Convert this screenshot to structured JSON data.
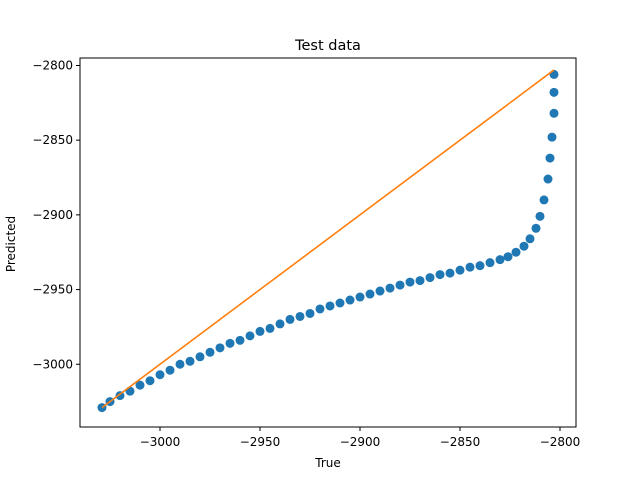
{
  "chart_data": {
    "type": "scatter",
    "title": "Test data",
    "xlabel": "True",
    "ylabel": "Predicted",
    "xlim": [
      -3040,
      -2792
    ],
    "ylim": [
      -3042,
      -2795
    ],
    "x_ticks": [
      {
        "value": -3000,
        "label": "−3000"
      },
      {
        "value": -2950,
        "label": "−2950"
      },
      {
        "value": -2900,
        "label": "−2900"
      },
      {
        "value": -2850,
        "label": "−2850"
      },
      {
        "value": -2800,
        "label": "−2800"
      }
    ],
    "y_ticks": [
      {
        "value": -3000,
        "label": "−3000"
      },
      {
        "value": -2950,
        "label": "−2950"
      },
      {
        "value": -2900,
        "label": "−2900"
      },
      {
        "value": -2850,
        "label": "−2850"
      },
      {
        "value": -2800,
        "label": "−2800"
      }
    ],
    "grid": false,
    "series": [
      {
        "kind": "scatter",
        "color": "#1f77b4",
        "points": [
          [
            -3029,
            -3029
          ],
          [
            -3025,
            -3025
          ],
          [
            -3020,
            -3021
          ],
          [
            -3015,
            -3018
          ],
          [
            -3010,
            -3014
          ],
          [
            -3005,
            -3011
          ],
          [
            -3000,
            -3007
          ],
          [
            -2995,
            -3004
          ],
          [
            -2990,
            -3000
          ],
          [
            -2985,
            -2998
          ],
          [
            -2980,
            -2995
          ],
          [
            -2975,
            -2992
          ],
          [
            -2970,
            -2989
          ],
          [
            -2965,
            -2986
          ],
          [
            -2960,
            -2984
          ],
          [
            -2955,
            -2981
          ],
          [
            -2950,
            -2978
          ],
          [
            -2945,
            -2976
          ],
          [
            -2940,
            -2973
          ],
          [
            -2935,
            -2970
          ],
          [
            -2930,
            -2968
          ],
          [
            -2925,
            -2966
          ],
          [
            -2920,
            -2963
          ],
          [
            -2915,
            -2961
          ],
          [
            -2910,
            -2959
          ],
          [
            -2905,
            -2957
          ],
          [
            -2900,
            -2955
          ],
          [
            -2895,
            -2953
          ],
          [
            -2890,
            -2951
          ],
          [
            -2885,
            -2949
          ],
          [
            -2880,
            -2947
          ],
          [
            -2875,
            -2945
          ],
          [
            -2870,
            -2944
          ],
          [
            -2865,
            -2942
          ],
          [
            -2860,
            -2940
          ],
          [
            -2855,
            -2939
          ],
          [
            -2850,
            -2937
          ],
          [
            -2845,
            -2935
          ],
          [
            -2840,
            -2934
          ],
          [
            -2835,
            -2932
          ],
          [
            -2830,
            -2930
          ],
          [
            -2826,
            -2928
          ],
          [
            -2822,
            -2925
          ],
          [
            -2818,
            -2921
          ],
          [
            -2815,
            -2916
          ],
          [
            -2812,
            -2909
          ],
          [
            -2810,
            -2901
          ],
          [
            -2808,
            -2890
          ],
          [
            -2806,
            -2876
          ],
          [
            -2805,
            -2862
          ],
          [
            -2804,
            -2848
          ],
          [
            -2803,
            -2832
          ],
          [
            -2803,
            -2818
          ],
          [
            -2803,
            -2806
          ]
        ]
      },
      {
        "kind": "line",
        "color": "#ff7f0e",
        "points": [
          [
            -3029,
            -3029
          ],
          [
            -2803,
            -2803
          ]
        ]
      }
    ]
  }
}
